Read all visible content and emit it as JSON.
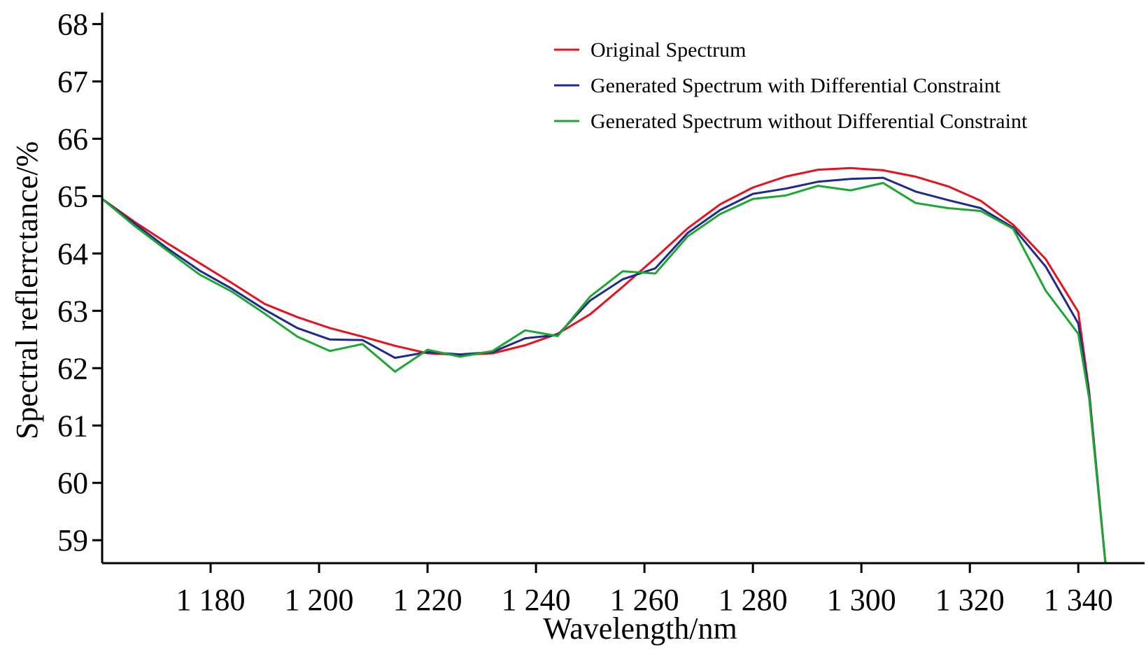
{
  "chart_data": {
    "type": "line",
    "title": "",
    "xlabel": "Wavelength/nm",
    "ylabel": "Spectral reflerrctance/%",
    "xlim": [
      1160,
      1345
    ],
    "ylim": [
      58.6,
      68.2
    ],
    "x_ticks": [
      1180,
      1200,
      1220,
      1240,
      1260,
      1280,
      1300,
      1320,
      1340
    ],
    "x_tick_labels": [
      "1 180",
      "1 200",
      "1 220",
      "1 240",
      "1 260",
      "1 280",
      "1 300",
      "1 320",
      "1 340"
    ],
    "y_ticks": [
      59,
      60,
      61,
      62,
      63,
      64,
      65,
      66,
      67,
      68
    ],
    "y_tick_labels": [
      "59",
      "60",
      "61",
      "62",
      "63",
      "64",
      "65",
      "66",
      "67",
      "68"
    ],
    "grid": false,
    "legend_position": "top-right",
    "x": [
      1160,
      1166,
      1172,
      1178,
      1184,
      1190,
      1196,
      1202,
      1208,
      1214,
      1220,
      1226,
      1232,
      1238,
      1244,
      1250,
      1256,
      1262,
      1268,
      1274,
      1280,
      1286,
      1292,
      1298,
      1304,
      1310,
      1316,
      1322,
      1328,
      1334,
      1340,
      1342,
      1345
    ],
    "series": [
      {
        "name": "Original Spectrum",
        "color": "#e8111f",
        "values": [
          64.95,
          64.55,
          64.18,
          63.83,
          63.48,
          63.12,
          62.89,
          62.7,
          62.55,
          62.39,
          62.26,
          62.23,
          62.26,
          62.4,
          62.6,
          62.94,
          63.42,
          63.92,
          64.44,
          64.86,
          65.15,
          65.34,
          65.46,
          65.49,
          65.45,
          65.34,
          65.17,
          64.92,
          64.5,
          63.9,
          62.98,
          61.6,
          58.6
        ]
      },
      {
        "name": "Generated Spectrum with Differential Constraint",
        "color": "#1f2a8c",
        "values": [
          64.95,
          64.52,
          64.09,
          63.7,
          63.38,
          63.02,
          62.7,
          62.5,
          62.49,
          62.18,
          62.28,
          62.24,
          62.28,
          62.52,
          62.58,
          63.18,
          63.55,
          63.74,
          64.36,
          64.76,
          65.04,
          65.13,
          65.25,
          65.3,
          65.32,
          65.08,
          64.93,
          64.79,
          64.45,
          63.77,
          62.78,
          61.55,
          58.6
        ]
      },
      {
        "name": "Generated Spectrum without Differential Constraint",
        "color": "#1aa832",
        "values": [
          64.95,
          64.48,
          64.05,
          63.63,
          63.33,
          62.95,
          62.55,
          62.3,
          62.42,
          61.94,
          62.32,
          62.2,
          62.3,
          62.66,
          62.56,
          63.25,
          63.69,
          63.65,
          64.3,
          64.69,
          64.95,
          65.01,
          65.18,
          65.1,
          65.23,
          64.88,
          64.79,
          64.74,
          64.43,
          63.35,
          62.6,
          61.48,
          58.6
        ]
      }
    ]
  }
}
